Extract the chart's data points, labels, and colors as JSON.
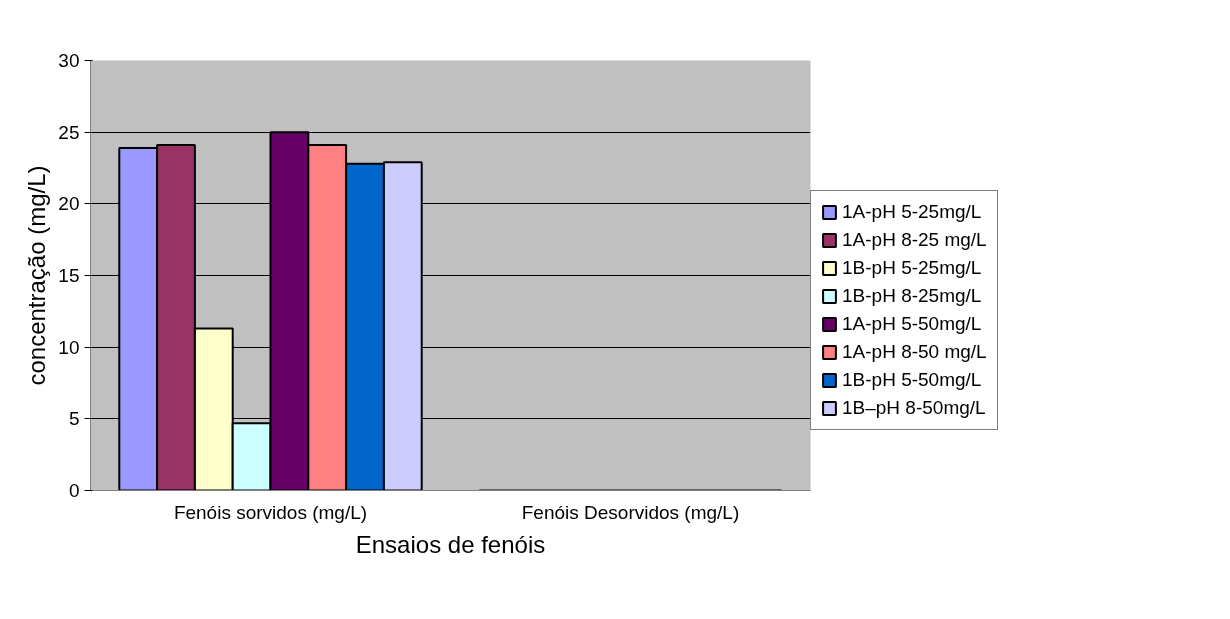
{
  "chart_data": {
    "type": "bar",
    "xlabel": "Ensaios de fenóis",
    "ylabel": "concentração (mg/L)",
    "categories": [
      "Fenóis sorvidos (mg/L)",
      "Fenóis Desorvidos (mg/L)"
    ],
    "series": [
      {
        "name": "1A-pH 5-25mg/L",
        "color": "#9999ff",
        "values": [
          23.9,
          0
        ]
      },
      {
        "name": "1A-pH 8-25 mg/L",
        "color": "#993366",
        "values": [
          24.1,
          0
        ]
      },
      {
        "name": "1B-pH 5-25mg/L",
        "color": "#ffffcc",
        "values": [
          11.3,
          0
        ]
      },
      {
        "name": "1B-pH 8-25mg/L",
        "color": "#ccffff",
        "values": [
          4.7,
          0
        ]
      },
      {
        "name": "1A-pH 5-50mg/L",
        "color": "#660066",
        "values": [
          25.0,
          0
        ]
      },
      {
        "name": "1A-pH 8-50 mg/L",
        "color": "#ff8080",
        "values": [
          24.1,
          0
        ]
      },
      {
        "name": "1B-pH 5-50mg/L",
        "color": "#0066cc",
        "values": [
          22.8,
          0
        ]
      },
      {
        "name": "1B–pH 8-50mg/L",
        "color": "#ccccff",
        "values": [
          22.9,
          0
        ]
      }
    ],
    "ylim": [
      0,
      30
    ],
    "yticks": [
      0,
      5,
      10,
      15,
      20,
      25,
      30
    ],
    "grid": "y",
    "legend": "right"
  }
}
